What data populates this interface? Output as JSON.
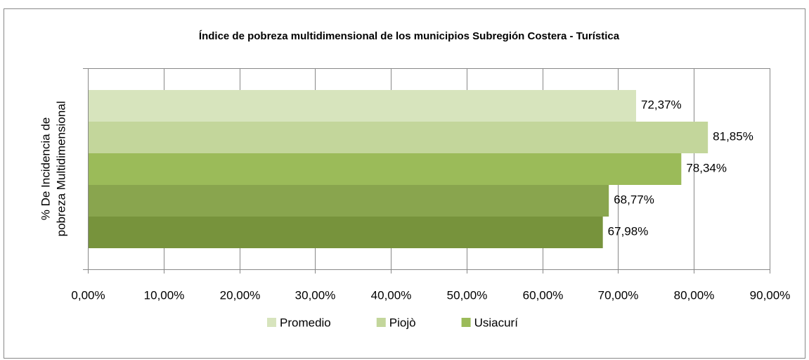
{
  "chart_data": {
    "type": "hbar",
    "title": "Índice de pobreza multidimensional de los municipios Subregión Costera - Turística",
    "y_label_lines": [
      "% De Incidencia de",
      "pobreza Multidimensional"
    ],
    "series": [
      {
        "name": "Promedio",
        "color": "#d7e4bd",
        "values": [
          72.37
        ],
        "value_labels": [
          "72,37%"
        ]
      },
      {
        "name": "Piojò",
        "color": "#c3d69b",
        "values": [
          81.85
        ],
        "value_labels": [
          "81,85%"
        ]
      },
      {
        "name": "Usiacurí",
        "color": "#9bbb59",
        "values": [
          78.34
        ],
        "value_labels": [
          "78,34%"
        ]
      },
      {
        "name": null,
        "color": "#89a54e",
        "values": [
          68.77
        ],
        "value_labels": [
          "68,77%"
        ]
      },
      {
        "name": null,
        "color": "#77933c",
        "values": [
          67.98
        ],
        "value_labels": [
          "67,98%"
        ]
      }
    ],
    "xlim": [
      0,
      90
    ],
    "xticks": [
      {
        "value": 0,
        "label": "0,00%"
      },
      {
        "value": 10,
        "label": "10,00%"
      },
      {
        "value": 20,
        "label": "20,00%"
      },
      {
        "value": 30,
        "label": "30,00%"
      },
      {
        "value": 40,
        "label": "40,00%"
      },
      {
        "value": 50,
        "label": "50,00%"
      },
      {
        "value": 60,
        "label": "60,00%"
      },
      {
        "value": 70,
        "label": "70,00%"
      },
      {
        "value": 80,
        "label": "80,00%"
      },
      {
        "value": 90,
        "label": "90,00%"
      }
    ],
    "grid": true
  }
}
